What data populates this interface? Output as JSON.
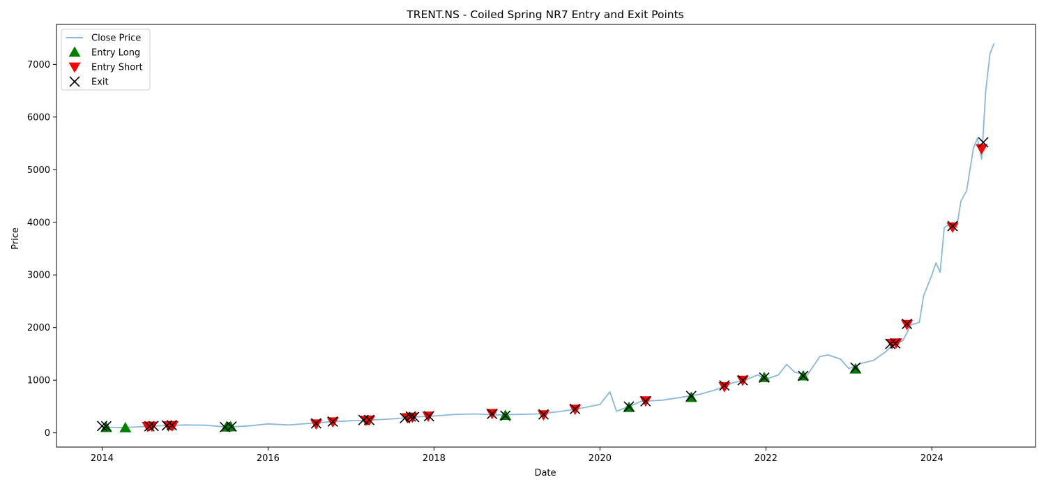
{
  "chart_data": {
    "type": "line",
    "title": "TRENT.NS - Coiled Spring NR7 Entry and Exit Points",
    "xlabel": "Date",
    "ylabel": "Price",
    "xlim": [
      2013.45,
      2025.25
    ],
    "ylim": [
      -270,
      7760
    ],
    "x_ticks": [
      2014,
      2016,
      2018,
      2020,
      2022,
      2024
    ],
    "y_ticks": [
      0,
      1000,
      2000,
      3000,
      4000,
      5000,
      6000,
      7000
    ],
    "grid": false,
    "legend_position": "top-left",
    "colors": {
      "close_price": "#8ab8d9",
      "entry_long": "#008000",
      "entry_short": "#ff0000",
      "exit": "#000000"
    },
    "series": [
      {
        "name": "Close Price",
        "kind": "line",
        "x": [
          2014.0,
          2014.25,
          2014.5,
          2014.75,
          2015.0,
          2015.25,
          2015.5,
          2015.75,
          2016.0,
          2016.25,
          2016.5,
          2016.75,
          2017.0,
          2017.25,
          2017.5,
          2017.75,
          2018.0,
          2018.25,
          2018.5,
          2018.75,
          2019.0,
          2019.25,
          2019.5,
          2019.75,
          2020.0,
          2020.12,
          2020.2,
          2020.25,
          2020.4,
          2020.5,
          2020.75,
          2021.0,
          2021.2,
          2021.4,
          2021.6,
          2021.75,
          2021.9,
          2022.0,
          2022.15,
          2022.25,
          2022.35,
          2022.5,
          2022.65,
          2022.75,
          2022.9,
          2023.0,
          2023.15,
          2023.3,
          2023.45,
          2023.55,
          2023.65,
          2023.75,
          2023.85,
          2023.9,
          2024.0,
          2024.05,
          2024.1,
          2024.15,
          2024.25,
          2024.3,
          2024.35,
          2024.42,
          2024.5,
          2024.55,
          2024.6,
          2024.65,
          2024.7,
          2024.75
        ],
        "y": [
          110,
          100,
          120,
          140,
          150,
          145,
          110,
          130,
          170,
          150,
          180,
          210,
          230,
          245,
          265,
          300,
          320,
          350,
          360,
          340,
          350,
          360,
          400,
          460,
          540,
          780,
          410,
          440,
          530,
          600,
          620,
          680,
          730,
          820,
          950,
          1000,
          1100,
          1020,
          1100,
          1300,
          1150,
          1100,
          1450,
          1480,
          1400,
          1220,
          1320,
          1380,
          1550,
          1700,
          1750,
          2050,
          2100,
          2600,
          3000,
          3230,
          3050,
          3900,
          4000,
          3900,
          4400,
          4600,
          5400,
          5600,
          5200,
          6500,
          7200,
          7400
        ]
      },
      {
        "name": "Entry Long",
        "kind": "marker",
        "marker": "triangle-up",
        "x": [
          2014.05,
          2014.28,
          2015.5,
          2015.55,
          2018.86,
          2020.35,
          2021.1,
          2021.98,
          2022.45,
          2023.08
        ],
        "y": [
          100,
          95,
          110,
          115,
          330,
          480,
          670,
          1050,
          1080,
          1210
        ]
      },
      {
        "name": "Entry Short",
        "kind": "marker",
        "marker": "triangle-down",
        "x": [
          2014.55,
          2014.6,
          2014.8,
          2014.85,
          2016.58,
          2016.78,
          2017.18,
          2017.22,
          2017.68,
          2017.74,
          2017.93,
          2018.7,
          2019.32,
          2019.7,
          2020.55,
          2021.5,
          2021.72,
          2023.52,
          2023.57,
          2023.7,
          2024.25,
          2024.6
        ],
        "y": [
          125,
          130,
          135,
          140,
          170,
          210,
          240,
          245,
          290,
          300,
          320,
          370,
          345,
          450,
          610,
          880,
          1000,
          1700,
          1710,
          2060,
          3910,
          5400
        ]
      },
      {
        "name": "Exit",
        "kind": "marker",
        "marker": "x",
        "x": [
          2014.0,
          2014.05,
          2014.57,
          2014.62,
          2014.78,
          2014.84,
          2015.48,
          2015.56,
          2016.58,
          2016.78,
          2017.15,
          2017.22,
          2017.65,
          2017.72,
          2017.76,
          2017.94,
          2018.7,
          2018.86,
          2019.32,
          2019.7,
          2020.35,
          2020.55,
          2021.1,
          2021.5,
          2021.72,
          2021.98,
          2022.45,
          2023.08,
          2023.5,
          2023.56,
          2023.7,
          2024.25,
          2024.62
        ],
        "y": [
          130,
          125,
          125,
          130,
          140,
          145,
          110,
          120,
          180,
          215,
          245,
          245,
          280,
          310,
          300,
          315,
          360,
          325,
          350,
          455,
          500,
          600,
          700,
          900,
          1000,
          1050,
          1080,
          1240,
          1690,
          1700,
          2070,
          3930,
          5520
        ]
      }
    ]
  }
}
